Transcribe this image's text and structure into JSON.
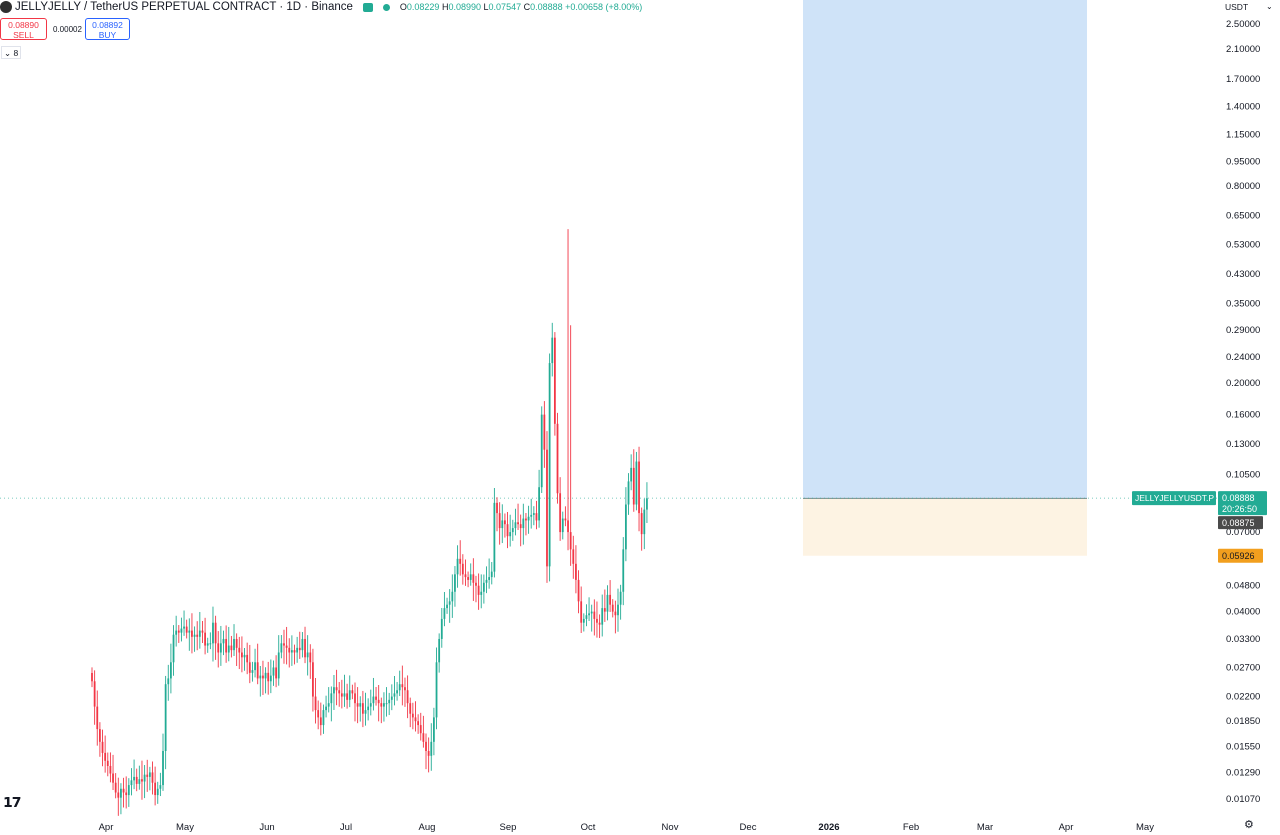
{
  "header": {
    "title": "JELLYJELLY / TetherUS PERPETUAL CONTRACT · 1D · Binance",
    "ohlc": {
      "o_label": "O",
      "o": "0.08229",
      "h_label": "H",
      "h": "0.08990",
      "l_label": "L",
      "l": "0.07547",
      "c_label": "C",
      "c": "0.08888",
      "change": "+0.00658 (+8.00%)"
    }
  },
  "trade": {
    "sell_price": "0.08890",
    "sell_label": "SELL",
    "spread": "0.00002",
    "buy_price": "0.08892",
    "buy_label": "BUY"
  },
  "indicator_toggle": "8",
  "axis_unit": "USDT",
  "colors": {
    "up": "#22ab94",
    "down": "#f23645",
    "profit_zone": "#cfe3f8",
    "loss_zone": "#fdf3e3",
    "stop_label": "#f29f1e",
    "price_label": "#22ab94"
  },
  "price_tag": {
    "symbol": "JELLYJELLYUSDT.P",
    "price": "0.08888",
    "countdown": "20:26:50",
    "entry": "0.08875",
    "stop": "0.05926"
  },
  "chart_data": {
    "type": "candlestick",
    "title": "JELLYJELLY / TetherUS PERPETUAL CONTRACT · 1D · Binance",
    "y_scale": "log",
    "ylim": [
      0.0098,
      2.9
    ],
    "y_ticks": [
      "2.50000",
      "2.10000",
      "1.70000",
      "1.40000",
      "1.15000",
      "0.95000",
      "0.80000",
      "0.65000",
      "0.53000",
      "0.43000",
      "0.35000",
      "0.29000",
      "0.24000",
      "0.20000",
      "0.16000",
      "0.13000",
      "0.10500",
      "0.07000",
      "0.04800",
      "0.04000",
      "0.03300",
      "0.02700",
      "0.02200",
      "0.01850",
      "0.01550",
      "0.01290",
      "0.01070"
    ],
    "x_ticks": [
      "Apr",
      "May",
      "Jun",
      "Jul",
      "Aug",
      "Sep",
      "Oct",
      "Nov",
      "Dec",
      "2026",
      "Feb",
      "Mar",
      "Apr",
      "May"
    ],
    "x_start": "2025-03-28",
    "close_series": [
      0.0245,
      0.0205,
      0.0175,
      0.016,
      0.0148,
      0.014,
      0.0135,
      0.0128,
      0.012,
      0.0112,
      0.0108,
      0.0115,
      0.0112,
      0.011,
      0.0118,
      0.0122,
      0.0125,
      0.0119,
      0.0123,
      0.0121,
      0.0127,
      0.0125,
      0.0129,
      0.012,
      0.011,
      0.0115,
      0.0118,
      0.015,
      0.024,
      0.025,
      0.028,
      0.034,
      0.035,
      0.0345,
      0.0355,
      0.036,
      0.0345,
      0.035,
      0.0335,
      0.034,
      0.0335,
      0.035,
      0.0345,
      0.0315,
      0.032,
      0.032,
      0.037,
      0.032,
      0.03,
      0.032,
      0.033,
      0.03,
      0.0315,
      0.0305,
      0.033,
      0.031,
      0.03,
      0.029,
      0.0295,
      0.028,
      0.026,
      0.0265,
      0.028,
      0.025,
      0.0255,
      0.025,
      0.026,
      0.0245,
      0.0255,
      0.027,
      0.025,
      0.03,
      0.032,
      0.0315,
      0.031,
      0.03,
      0.0305,
      0.03,
      0.031,
      0.0305,
      0.033,
      0.029,
      0.03,
      0.028,
      0.022,
      0.02,
      0.019,
      0.018,
      0.02,
      0.0205,
      0.021,
      0.0225,
      0.0235,
      0.023,
      0.0225,
      0.022,
      0.0225,
      0.0215,
      0.023,
      0.0225,
      0.021,
      0.0205,
      0.021,
      0.0195,
      0.02,
      0.0205,
      0.021,
      0.022,
      0.0215,
      0.021,
      0.0205,
      0.021,
      0.021,
      0.0215,
      0.022,
      0.0225,
      0.023,
      0.024,
      0.0235,
      0.023,
      0.021,
      0.0195,
      0.019,
      0.0185,
      0.018,
      0.017,
      0.016,
      0.015,
      0.0145,
      0.016,
      0.019,
      0.028,
      0.033,
      0.038,
      0.041,
      0.042,
      0.043,
      0.046,
      0.052,
      0.058,
      0.056,
      0.052,
      0.051,
      0.05,
      0.052,
      0.049,
      0.048,
      0.045,
      0.046,
      0.049,
      0.05,
      0.051,
      0.053,
      0.086,
      0.08,
      0.072,
      0.076,
      0.074,
      0.068,
      0.07,
      0.072,
      0.075,
      0.074,
      0.072,
      0.077,
      0.076,
      0.078,
      0.079,
      0.08,
      0.076,
      0.096,
      0.16,
      0.125,
      0.055,
      0.23,
      0.275,
      0.15,
      0.092,
      0.07,
      0.077,
      0.076,
      0.07,
      0.062,
      0.056,
      0.05,
      0.043,
      0.037,
      0.038,
      0.039,
      0.0395,
      0.04,
      0.038,
      0.037,
      0.0365,
      0.041,
      0.04,
      0.045,
      0.042,
      0.04,
      0.039,
      0.042,
      0.046,
      0.062,
      0.085,
      0.1,
      0.11,
      0.085,
      0.115,
      0.08,
      0.069,
      0.082,
      0.0888
    ],
    "entry": 0.08875,
    "stop": 0.05926,
    "target": 2.9
  }
}
